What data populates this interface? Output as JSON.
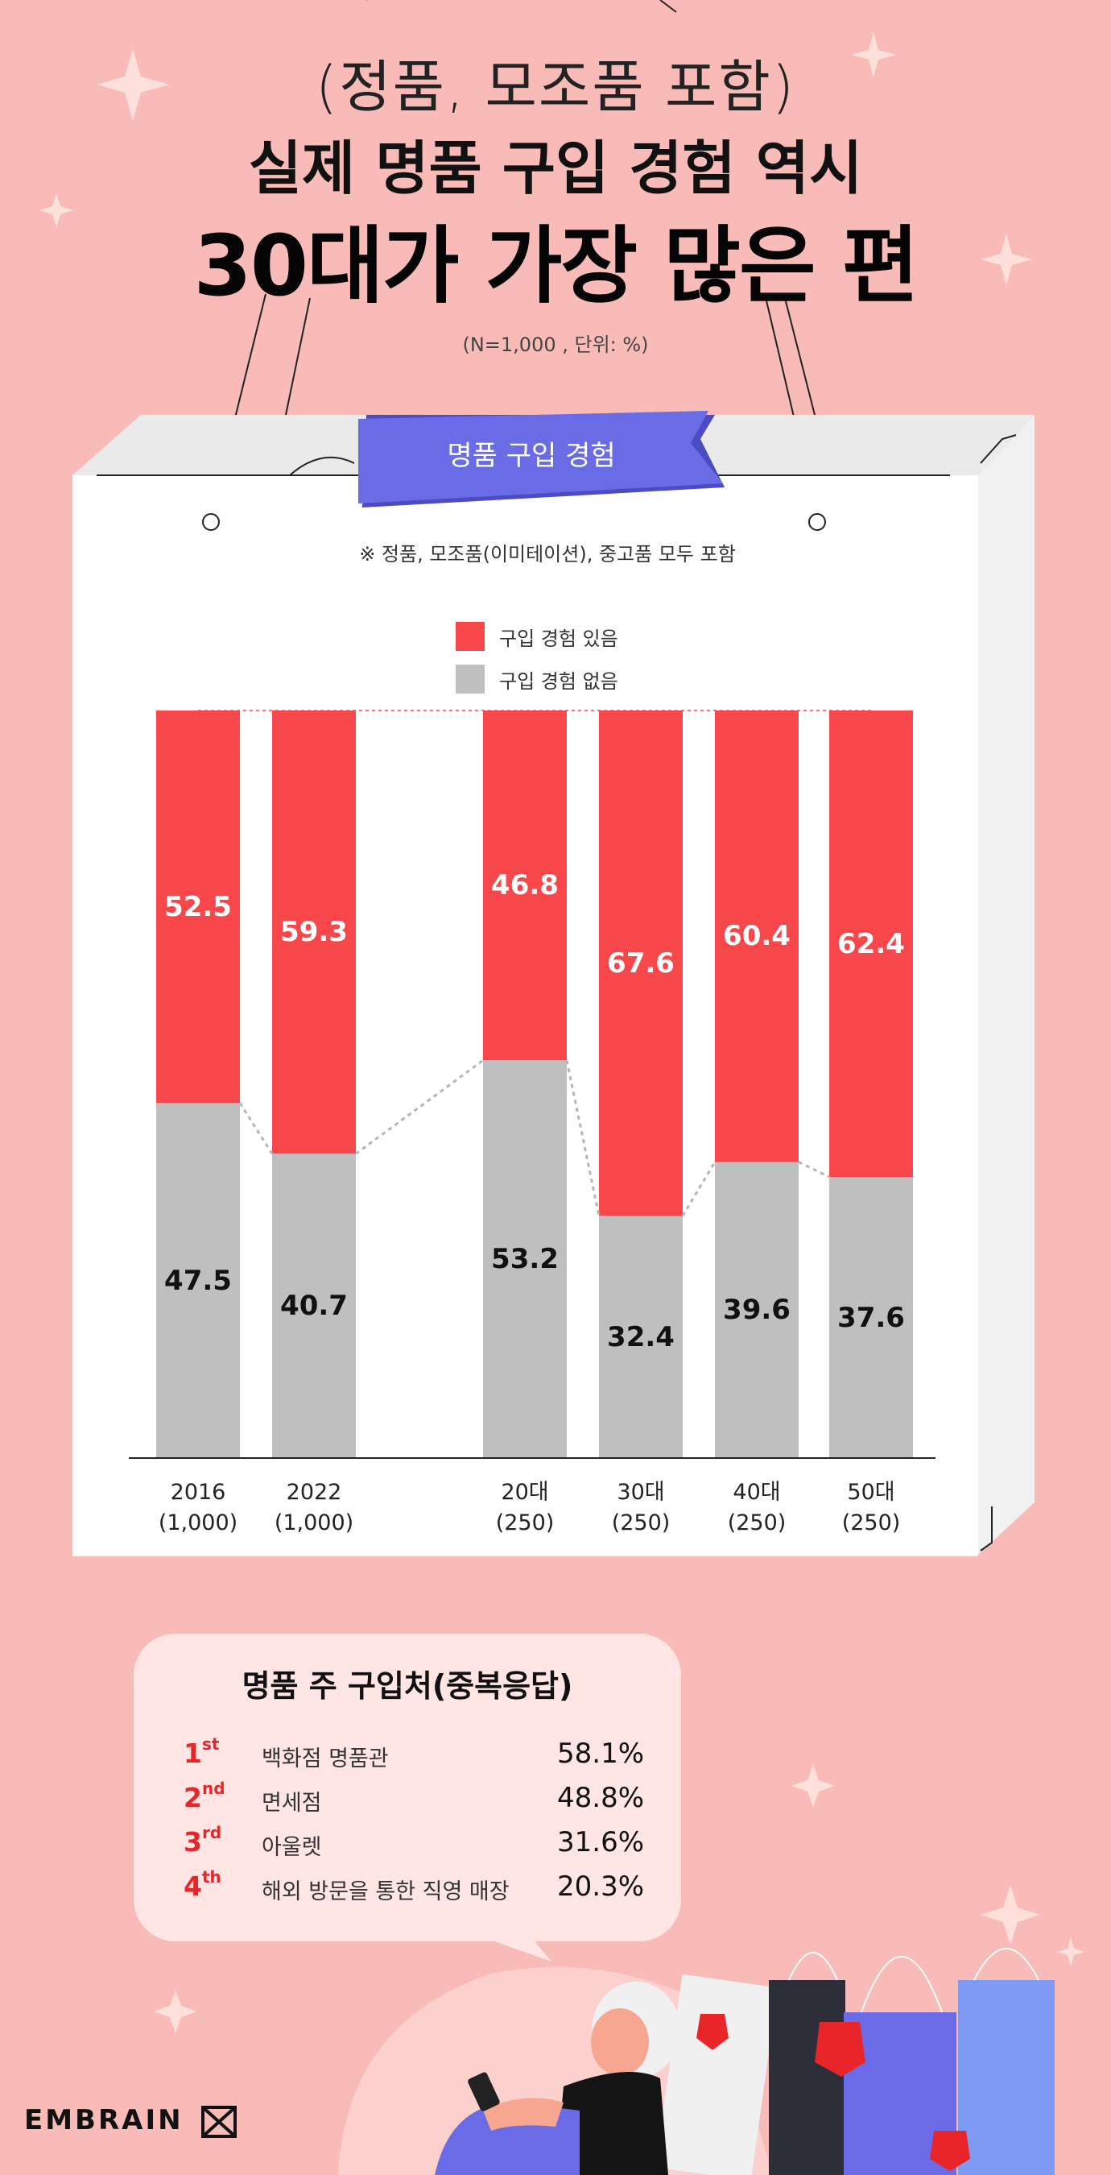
{
  "header": {
    "line1": "(정품, 모조품 포함)",
    "line2": "실제 명품 구입 경험 역시",
    "line3": "30대가 가장 많은 편",
    "sample_note": "(N=1,000 , 단위: %)"
  },
  "chart_section": {
    "ribbon_label": "명품 구입 경험",
    "note": "※ 정품, 모조품(이미테이션), 중고품 모두 포함"
  },
  "chart_data": {
    "type": "bar",
    "stacked": true,
    "categories": [
      "2016",
      "2022",
      "20대",
      "30대",
      "40대",
      "50대"
    ],
    "category_sub": [
      "(1,000)",
      "(1,000)",
      "(250)",
      "(250)",
      "(250)",
      "(250)"
    ],
    "series": [
      {
        "name": "구입 경험 있음",
        "color": "#f7474a",
        "values": [
          52.5,
          59.3,
          46.8,
          67.6,
          60.4,
          62.4
        ]
      },
      {
        "name": "구입 경험 없음",
        "color": "#bfbfbf",
        "values": [
          47.5,
          40.7,
          53.2,
          32.4,
          39.6,
          37.6
        ]
      }
    ],
    "ylim": [
      0,
      100
    ],
    "legend_position": "top-center"
  },
  "channels": {
    "title": "명품 주 구입처(중복응답)",
    "rank_color": "#e8262a",
    "items": [
      {
        "rank": "1",
        "suffix": "st",
        "place": "백화점 명품관",
        "pct": "58.1%"
      },
      {
        "rank": "2",
        "suffix": "nd",
        "place": "면세점",
        "pct": "48.8%"
      },
      {
        "rank": "3",
        "suffix": "rd",
        "place": "아울렛",
        "pct": "31.6%"
      },
      {
        "rank": "4",
        "suffix": "th",
        "place": "해외 방문을 통한 직영 매장",
        "pct": "20.3%"
      }
    ]
  },
  "brand": {
    "logo": "EMBRAIN"
  }
}
